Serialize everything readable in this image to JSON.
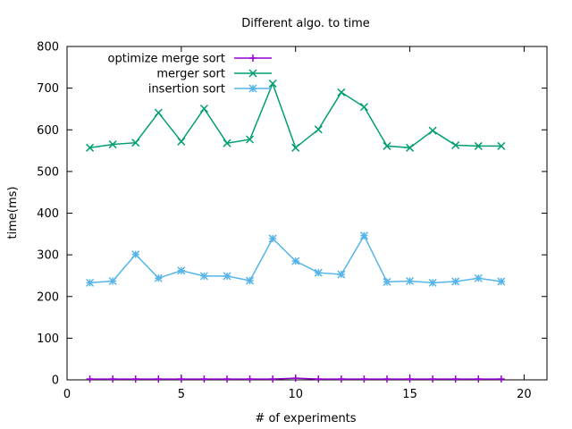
{
  "chart_data": {
    "type": "line",
    "title": "Different algo. to time",
    "xlabel": "# of experiments",
    "ylabel": "time(ms)",
    "xlim": [
      0,
      21
    ],
    "ylim": [
      0,
      800
    ],
    "xticks": [
      0,
      5,
      10,
      15,
      20
    ],
    "yticks": [
      0,
      100,
      200,
      300,
      400,
      500,
      600,
      700,
      800
    ],
    "grid": false,
    "legend_position": "top-left",
    "x": [
      1,
      2,
      3,
      4,
      5,
      6,
      7,
      8,
      9,
      10,
      11,
      12,
      13,
      14,
      15,
      16,
      17,
      18,
      19
    ],
    "series": [
      {
        "name": "optimize merge sort",
        "color": "#9400d3",
        "marker": "plus",
        "values": [
          2,
          2,
          2,
          2,
          2,
          2,
          2,
          2,
          2,
          4,
          2,
          2,
          2,
          2,
          2,
          2,
          2,
          2,
          2
        ]
      },
      {
        "name": "merger sort",
        "color": "#009e73",
        "marker": "cross",
        "values": [
          557,
          565,
          569,
          641,
          572,
          651,
          568,
          577,
          711,
          557,
          601,
          690,
          655,
          561,
          557,
          598,
          563,
          561,
          561
        ]
      },
      {
        "name": "insertion sort",
        "color": "#56b4e9",
        "marker": "star",
        "values": [
          233,
          237,
          301,
          244,
          262,
          249,
          249,
          238,
          339,
          285,
          257,
          253,
          346,
          235,
          237,
          233,
          236,
          244,
          236
        ]
      }
    ]
  }
}
